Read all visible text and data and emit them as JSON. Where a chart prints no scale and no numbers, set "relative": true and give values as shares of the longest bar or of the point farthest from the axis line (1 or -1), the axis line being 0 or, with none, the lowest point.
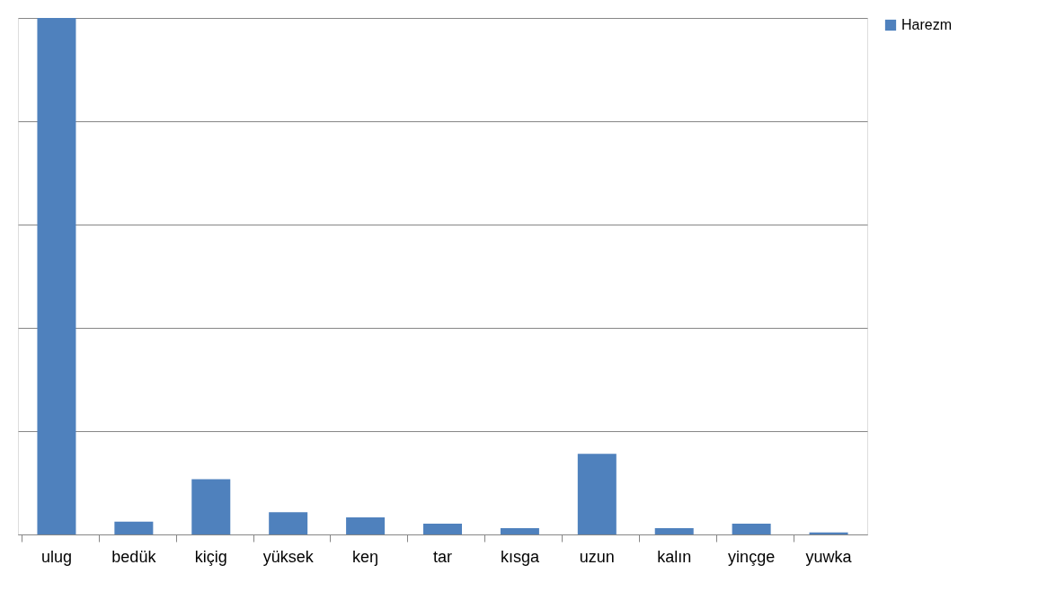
{
  "chart_data": {
    "type": "bar",
    "relative": true,
    "categories": [
      "ulug",
      "bedük",
      "kiçig",
      "yüksek",
      "keŋ",
      "tar",
      "kısga",
      "uzun",
      "kalın",
      "yinçge",
      "yuwka"
    ],
    "series": [
      {
        "name": "Harezm",
        "color": "#4f81bd",
        "values": [
          1,
          0.025,
          0.107,
          0.043,
          0.033,
          0.021,
          0.012,
          0.156,
          0.012,
          0.021,
          0.004
        ]
      }
    ],
    "grid": "y",
    "legend": "right"
  }
}
